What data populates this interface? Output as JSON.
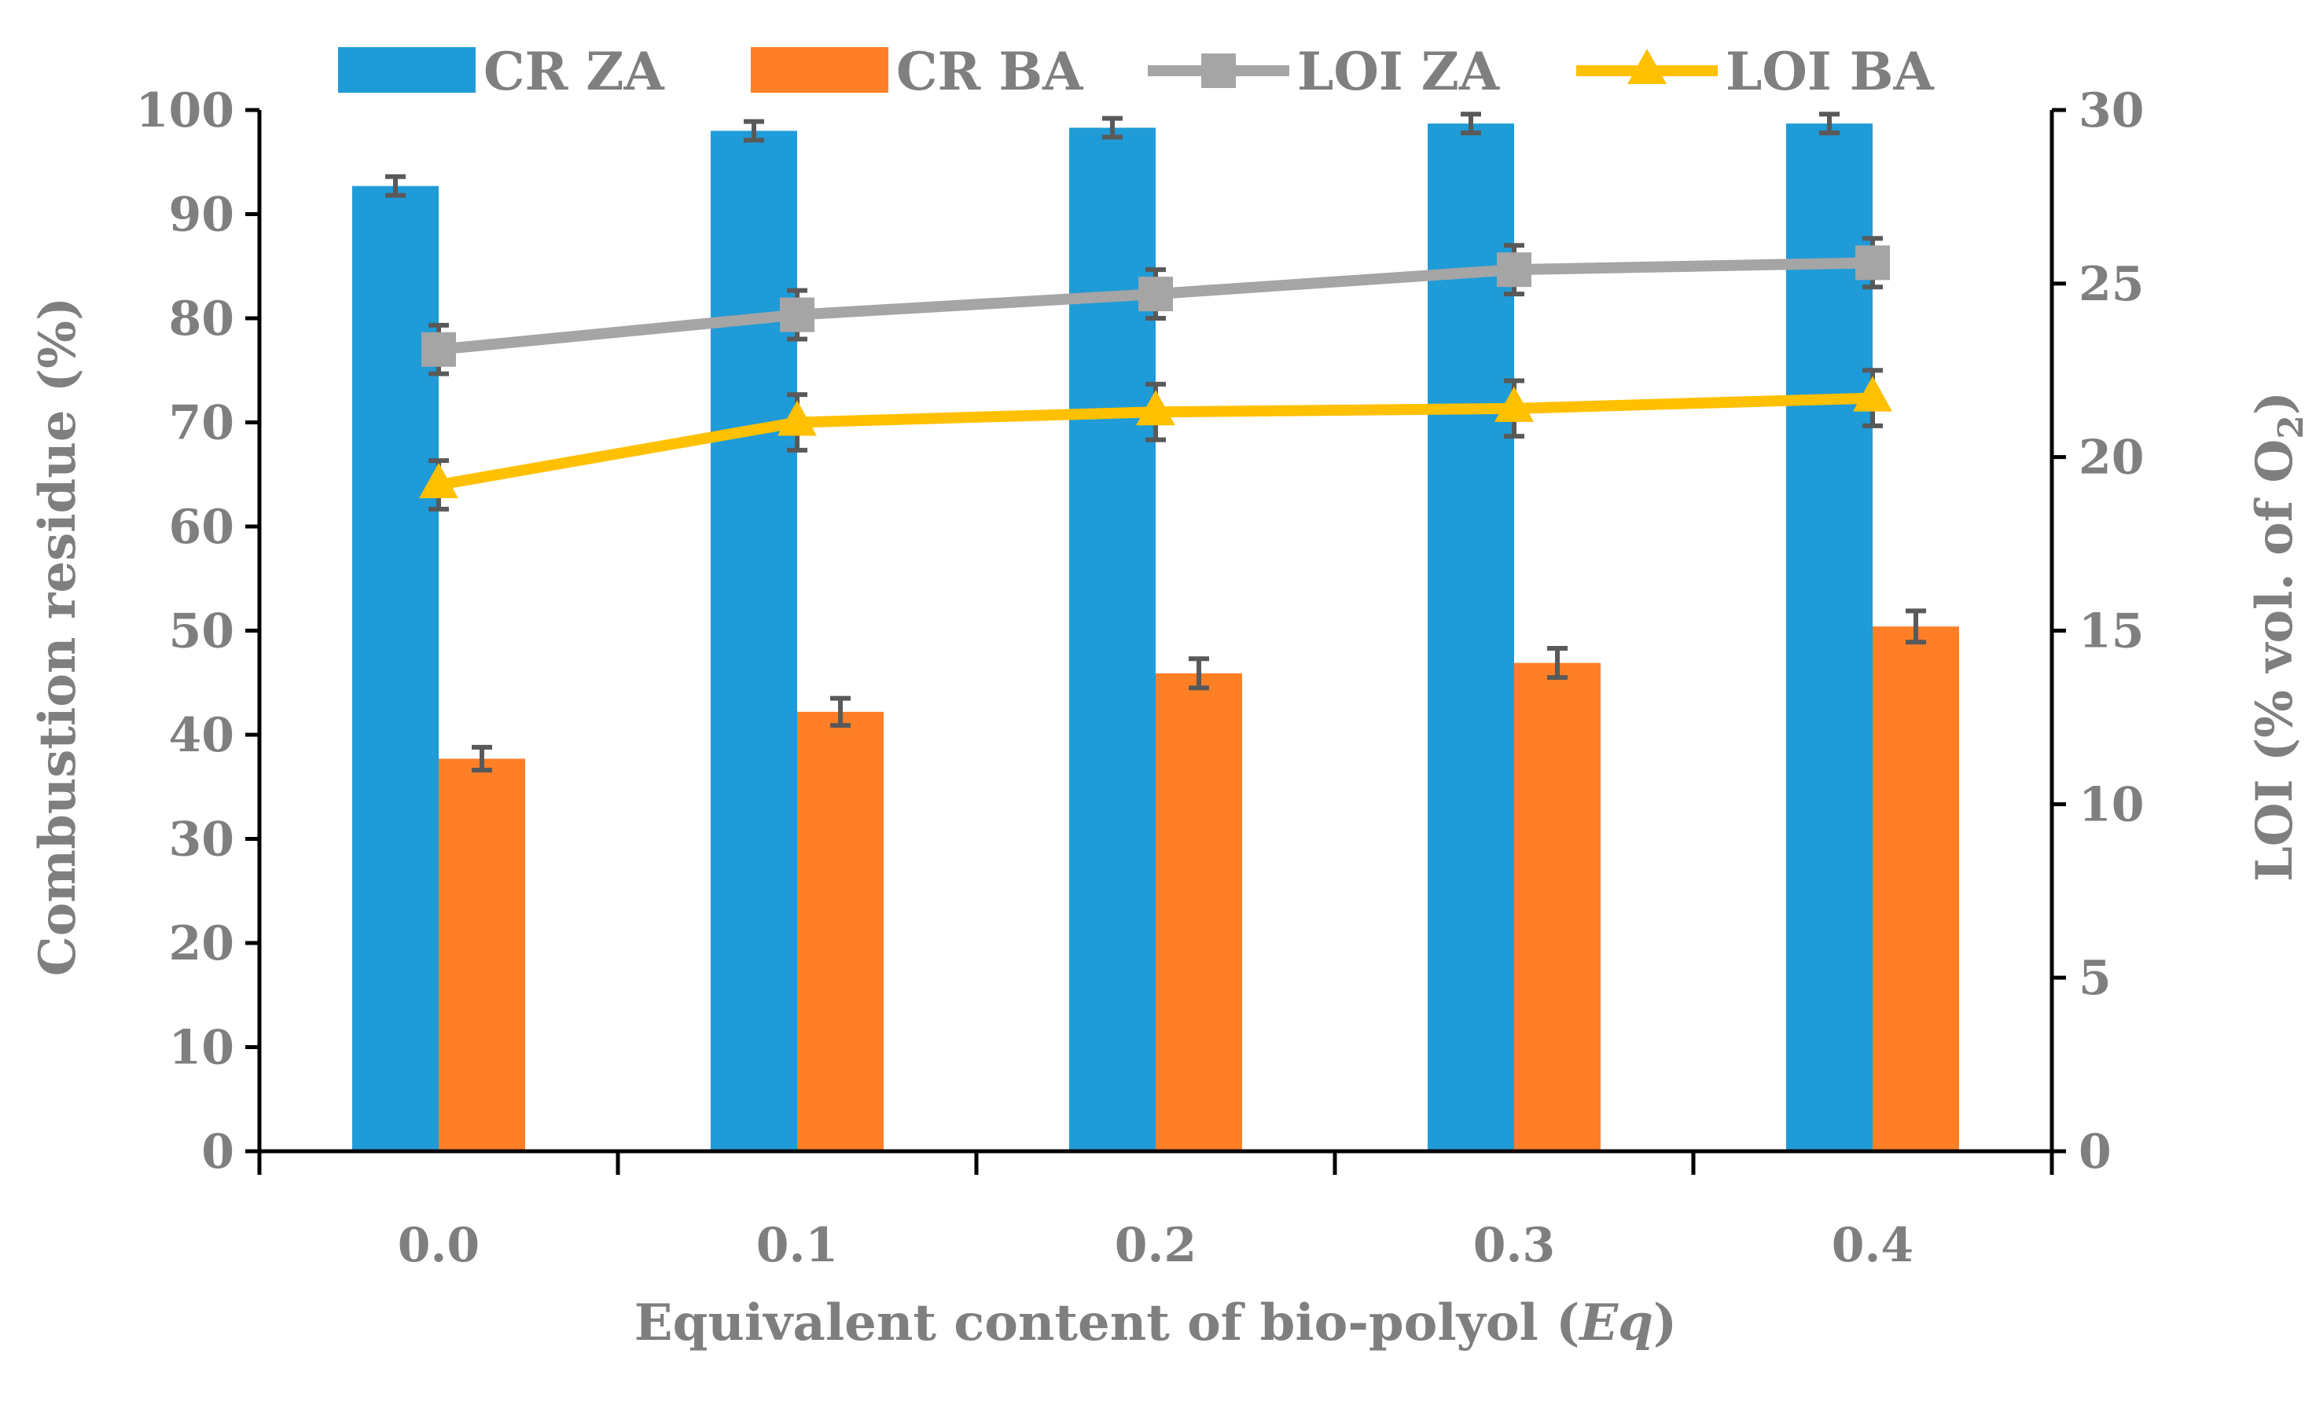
{
  "chart_data": {
    "type": "bar",
    "categories": [
      "0.0",
      "0.1",
      "0.2",
      "0.3",
      "0.4"
    ],
    "xlabel_prefix": "Equivalent content of bio-polyol (",
    "xlabel_italic": "Eq",
    "xlabel_suffix": ")",
    "ylabel": "Combustion residue (%)",
    "y2label_main": "LOI (% vol. of O",
    "y2label_sub": "2",
    "y2label_end": ")",
    "ylim": [
      0,
      100
    ],
    "y2lim": [
      0,
      30
    ],
    "yticks": [
      0,
      10,
      20,
      30,
      40,
      50,
      60,
      70,
      80,
      90,
      100
    ],
    "y2ticks": [
      0,
      5,
      10,
      15,
      20,
      25,
      30
    ],
    "bars": [
      {
        "name": "CR ZA",
        "color": "#1f9bd7",
        "values": [
          92.7,
          98.0,
          98.3,
          98.7,
          98.7
        ],
        "errors": [
          0.9,
          0.9,
          0.9,
          0.9,
          0.9
        ]
      },
      {
        "name": "CR BA",
        "color": "#ff7f27",
        "values": [
          37.7,
          42.2,
          45.9,
          46.9,
          50.4
        ],
        "errors": [
          1.1,
          1.3,
          1.4,
          1.4,
          1.5
        ]
      }
    ],
    "lines": [
      {
        "name": "LOI ZA",
        "color": "#a5a5a5",
        "marker": "square",
        "values": [
          23.1,
          24.1,
          24.7,
          25.4,
          25.6
        ],
        "errors": [
          0.7,
          0.7,
          0.7,
          0.7,
          0.7
        ]
      },
      {
        "name": "LOI BA",
        "color": "#ffc000",
        "marker": "triangle",
        "values": [
          19.2,
          21.0,
          21.3,
          21.4,
          21.7
        ],
        "errors": [
          0.7,
          0.8,
          0.8,
          0.8,
          0.8
        ]
      }
    ],
    "legend_position": "top"
  }
}
